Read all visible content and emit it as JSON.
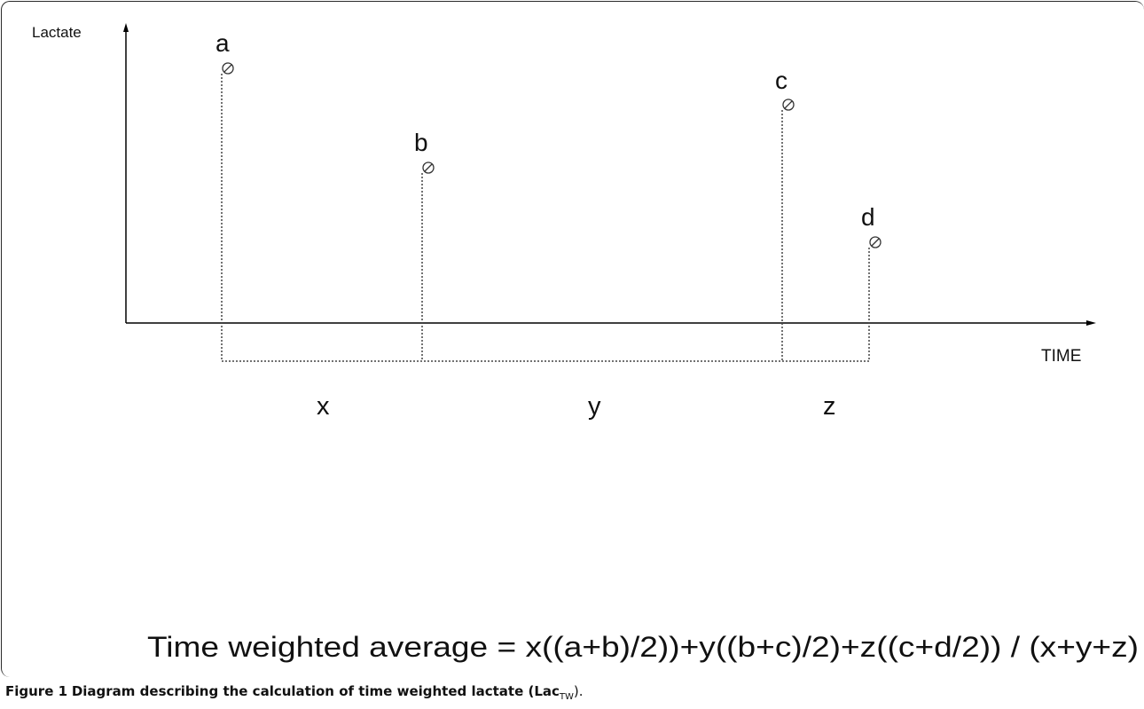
{
  "diagram": {
    "y_axis_label": "Lactate",
    "x_axis_label": "TIME",
    "points": [
      {
        "label": "a"
      },
      {
        "label": "b"
      },
      {
        "label": "c"
      },
      {
        "label": "d"
      }
    ],
    "intervals": [
      "x",
      "y",
      "z"
    ],
    "formula": "Time weighted average = x((a+b)/2))+y((b+c)/2)+z((c+d/2)) / (x+y+z)"
  },
  "caption": {
    "figure_label": "Figure 1",
    "text": "Diagram describing the calculation of time weighted lactate (Lac",
    "subscript": "TW",
    "suffix": ")."
  }
}
